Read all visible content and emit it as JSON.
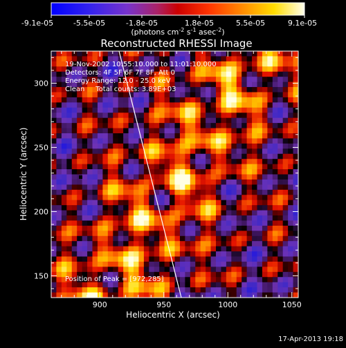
{
  "colorbar": {
    "tick_labels": [
      "-9.1e-05",
      "-5.5e-05",
      "-1.8e-05",
      "1.8e-05",
      "5.5e-05",
      "9.1e-05"
    ],
    "units_prefix": "(photons cm",
    "units_exp1": "-2",
    "units_mid": " s",
    "units_exp2": "-1",
    "units_mid2": " asec",
    "units_exp3": "-2",
    "units_suffix": ")",
    "palette": [
      "#0000ff",
      "#6633cc",
      "#993399",
      "#cc0033",
      "#ff3300",
      "#ff8800",
      "#ffcc00",
      "#ffff99",
      "#ffffff"
    ]
  },
  "chart_data": {
    "type": "heatmap",
    "title": "Reconstructed RHESSI Image",
    "xlabel": "Heliocentric X (arcsec)",
    "ylabel": "Heliocentric Y (arcsec)",
    "xlim": [
      862,
      1055
    ],
    "ylim": [
      133,
      325
    ],
    "x_ticks": [
      "900",
      "950",
      "1000",
      "1050"
    ],
    "x_tick_values": [
      900,
      950,
      1000,
      1050
    ],
    "y_ticks": [
      "150",
      "200",
      "250",
      "300"
    ],
    "y_tick_values": [
      150,
      200,
      250,
      300
    ],
    "value_range": [
      -9.1e-05,
      9.1e-05
    ],
    "peak_position": [
      972,
      285
    ]
  },
  "annotation": {
    "time_range": "19-Nov-2002 10:55:10.000 to 11:01:10.000",
    "detectors": "Detectors: 4F 5F 6F 7F 8F, Att 0",
    "energy": "Energy Range: 12.0 - 25.0 keV",
    "clean": "Clean     Total counts: 3.89E+03",
    "peak": "Position of Peak = [972,285]"
  },
  "timestamp": "17-Apr-2013 19:18"
}
